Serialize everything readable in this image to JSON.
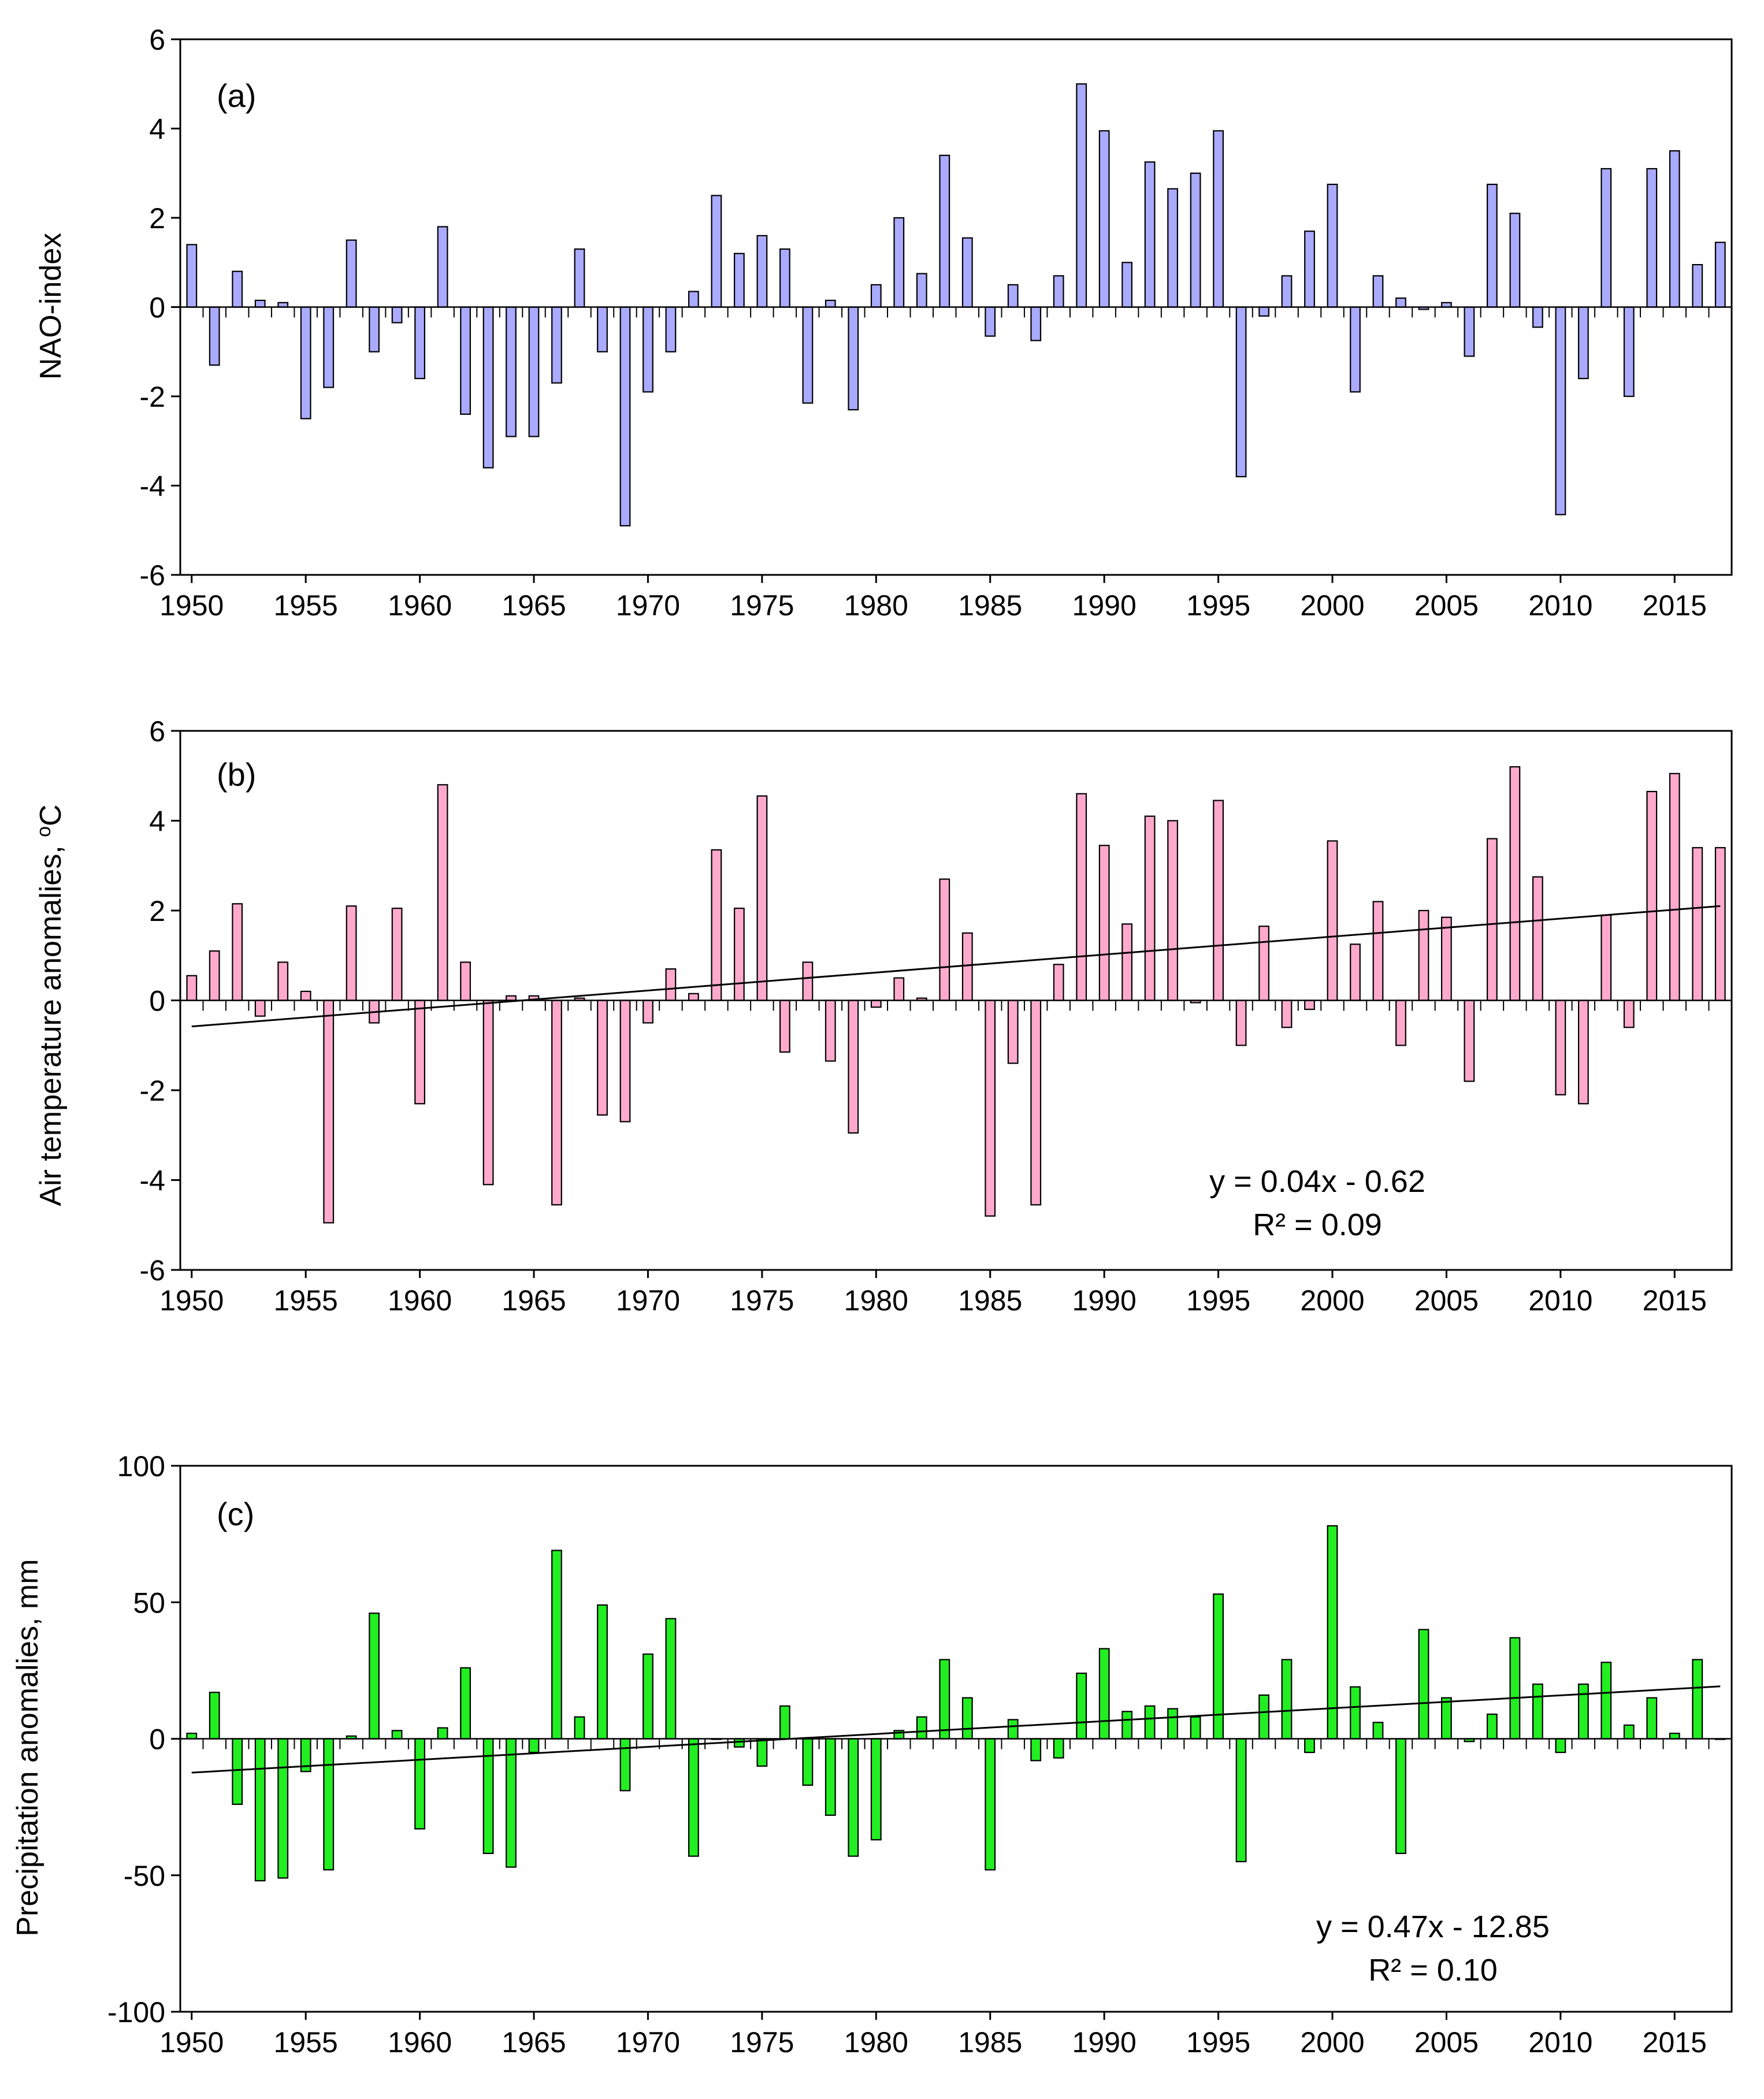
{
  "colors": {
    "panel_a": "#aaaaff",
    "panel_b": "#ffaacc",
    "panel_c": "#22ee22",
    "axis": "#000000",
    "trend": "#000000",
    "background": "#ffffff"
  },
  "chart_data": [
    {
      "type": "bar",
      "panel_label": "(a)",
      "title": "",
      "xlabel": "",
      "ylabel": "NAO-index",
      "ylim": [
        -6,
        6
      ],
      "yticks": [
        -6,
        -4,
        -2,
        0,
        2,
        4,
        6
      ],
      "xlim": [
        1949.5,
        2017.5
      ],
      "xtick_years": [
        1950,
        1955,
        1960,
        1965,
        1970,
        1975,
        1980,
        1985,
        1990,
        1995,
        2000,
        2005,
        2010,
        2015
      ],
      "xtick_labels": [
        "1950",
        "1955",
        "1960",
        "1965",
        "1970",
        "1975",
        "1980",
        "1985",
        "1990",
        "1995",
        "2000",
        "2005",
        "2010",
        "2015"
      ],
      "grid": false,
      "trend": null,
      "equation": [],
      "x": [
        1950,
        1951,
        1952,
        1953,
        1954,
        1955,
        1956,
        1957,
        1958,
        1959,
        1960,
        1961,
        1962,
        1963,
        1964,
        1965,
        1966,
        1967,
        1968,
        1969,
        1970,
        1971,
        1972,
        1973,
        1974,
        1975,
        1976,
        1977,
        1978,
        1979,
        1980,
        1981,
        1982,
        1983,
        1984,
        1985,
        1986,
        1987,
        1988,
        1989,
        1990,
        1991,
        1992,
        1993,
        1994,
        1995,
        1996,
        1997,
        1998,
        1999,
        2000,
        2001,
        2002,
        2003,
        2004,
        2005,
        2006,
        2007,
        2008,
        2009,
        2010,
        2011,
        2012,
        2013,
        2014,
        2015,
        2016,
        2017
      ],
      "values": [
        1.4,
        -1.3,
        0.8,
        0.15,
        0.1,
        -2.5,
        -1.8,
        1.5,
        -1.0,
        -0.35,
        -1.6,
        1.8,
        -2.4,
        -3.6,
        -2.9,
        -2.9,
        -1.7,
        1.3,
        -1.0,
        -4.9,
        -1.9,
        -1.0,
        0.35,
        2.5,
        1.2,
        1.6,
        1.3,
        -2.15,
        0.15,
        -2.3,
        0.5,
        2.0,
        0.75,
        3.4,
        1.55,
        -0.65,
        0.5,
        -0.75,
        0.7,
        5.0,
        3.95,
        1.0,
        3.25,
        2.65,
        3.0,
        3.95,
        -3.8,
        -0.2,
        0.7,
        1.7,
        2.75,
        -1.9,
        0.7,
        0.2,
        -0.05,
        0.1,
        -1.1,
        2.75,
        2.1,
        -0.45,
        -4.65,
        -1.6,
        3.1,
        -2.0,
        3.1,
        3.5,
        0.95,
        1.45
      ]
    },
    {
      "type": "bar",
      "panel_label": "(b)",
      "title": "",
      "xlabel": "",
      "ylabel": "Air temperature anomalies, ",
      "ylabel_unit_sup": "o",
      "ylabel_unit": "C",
      "ylim": [
        -6,
        6
      ],
      "yticks": [
        -6,
        -4,
        -2,
        0,
        2,
        4,
        6
      ],
      "xlim": [
        1949.5,
        2017.5
      ],
      "xtick_years": [
        1950,
        1955,
        1960,
        1965,
        1970,
        1975,
        1980,
        1985,
        1990,
        1995,
        2000,
        2005,
        2010,
        2015
      ],
      "xtick_labels": [
        "1950",
        "1955",
        "1960",
        "1965",
        "1970",
        "1975",
        "1980",
        "1985",
        "1990",
        "1995",
        "2000",
        "2005",
        "2010",
        "2015"
      ],
      "grid": false,
      "trend": {
        "x": [
          1950,
          2017
        ],
        "y": [
          -0.58,
          2.1
        ]
      },
      "equation": [
        "y = 0.04x - 0.62",
        "R² = 0.09"
      ],
      "x": [
        1950,
        1951,
        1952,
        1953,
        1954,
        1955,
        1956,
        1957,
        1958,
        1959,
        1960,
        1961,
        1962,
        1963,
        1964,
        1965,
        1966,
        1967,
        1968,
        1969,
        1970,
        1971,
        1972,
        1973,
        1974,
        1975,
        1976,
        1977,
        1978,
        1979,
        1980,
        1981,
        1982,
        1983,
        1984,
        1985,
        1986,
        1987,
        1988,
        1989,
        1990,
        1991,
        1992,
        1993,
        1994,
        1995,
        1996,
        1997,
        1998,
        1999,
        2000,
        2001,
        2002,
        2003,
        2004,
        2005,
        2006,
        2007,
        2008,
        2009,
        2010,
        2011,
        2012,
        2013,
        2014,
        2015,
        2016,
        2017
      ],
      "values": [
        0.55,
        1.1,
        2.15,
        -0.35,
        0.85,
        0.2,
        -4.95,
        2.1,
        -0.5,
        2.05,
        -2.3,
        4.8,
        0.85,
        -4.1,
        0.1,
        0.1,
        -4.55,
        0.05,
        -2.55,
        -2.7,
        -0.5,
        0.7,
        0.15,
        3.35,
        2.05,
        4.55,
        -1.15,
        0.85,
        -1.35,
        -2.95,
        -0.15,
        0.5,
        0.05,
        2.7,
        1.5,
        -4.8,
        -1.4,
        -4.55,
        0.8,
        4.6,
        3.45,
        1.7,
        4.1,
        4.0,
        -0.05,
        4.45,
        -1.0,
        1.65,
        -0.6,
        -0.2,
        3.55,
        1.25,
        2.2,
        -1.0,
        2.0,
        1.85,
        -1.8,
        3.6,
        5.2,
        2.75,
        -2.1,
        -2.3,
        1.9,
        -0.6,
        4.65,
        5.05,
        3.4,
        3.4
      ]
    },
    {
      "type": "bar",
      "panel_label": "(c)",
      "title": "",
      "xlabel": "",
      "ylabel": "Precipitation anomalies, mm",
      "ylim": [
        -100,
        100
      ],
      "yticks": [
        -100,
        -50,
        0,
        50,
        100
      ],
      "xlim": [
        1949.5,
        2017.5
      ],
      "xtick_years": [
        1950,
        1955,
        1960,
        1965,
        1970,
        1975,
        1980,
        1985,
        1990,
        1995,
        2000,
        2005,
        2010,
        2015
      ],
      "xtick_labels": [
        "1950",
        "1955",
        "1960",
        "1965",
        "1970",
        "1975",
        "1980",
        "1985",
        "1990",
        "1995",
        "2000",
        "2005",
        "2010",
        "2015"
      ],
      "grid": false,
      "trend": {
        "x": [
          1950,
          2017
        ],
        "y": [
          -12.4,
          19.2
        ]
      },
      "equation": [
        "y = 0.47x - 12.85",
        "R² = 0.10"
      ],
      "x": [
        1950,
        1951,
        1952,
        1953,
        1954,
        1955,
        1956,
        1957,
        1958,
        1959,
        1960,
        1961,
        1962,
        1963,
        1964,
        1965,
        1966,
        1967,
        1968,
        1969,
        1970,
        1971,
        1972,
        1973,
        1974,
        1975,
        1976,
        1977,
        1978,
        1979,
        1980,
        1981,
        1982,
        1983,
        1984,
        1985,
        1986,
        1987,
        1988,
        1989,
        1990,
        1991,
        1992,
        1993,
        1994,
        1995,
        1996,
        1997,
        1998,
        1999,
        2000,
        2001,
        2002,
        2003,
        2004,
        2005,
        2006,
        2007,
        2008,
        2009,
        2010,
        2011,
        2012,
        2013,
        2014,
        2015,
        2016,
        2017
      ],
      "values": [
        2,
        17,
        -24,
        -52,
        -51,
        -12,
        -48,
        1,
        46,
        3,
        -33,
        4,
        26,
        -42,
        -47,
        -5,
        69,
        8,
        49,
        -19,
        31,
        44,
        -43,
        0,
        -3,
        -10,
        12,
        -17,
        -28,
        -43,
        -37,
        3,
        8,
        29,
        15,
        -48,
        7,
        -8,
        -7,
        24,
        33,
        10,
        12,
        11,
        8,
        53,
        -45,
        16,
        29,
        -5,
        78,
        19,
        6,
        -42,
        40,
        15,
        -1,
        9,
        37,
        20,
        -5,
        20,
        28,
        5,
        15,
        2,
        29,
        0
      ]
    }
  ]
}
